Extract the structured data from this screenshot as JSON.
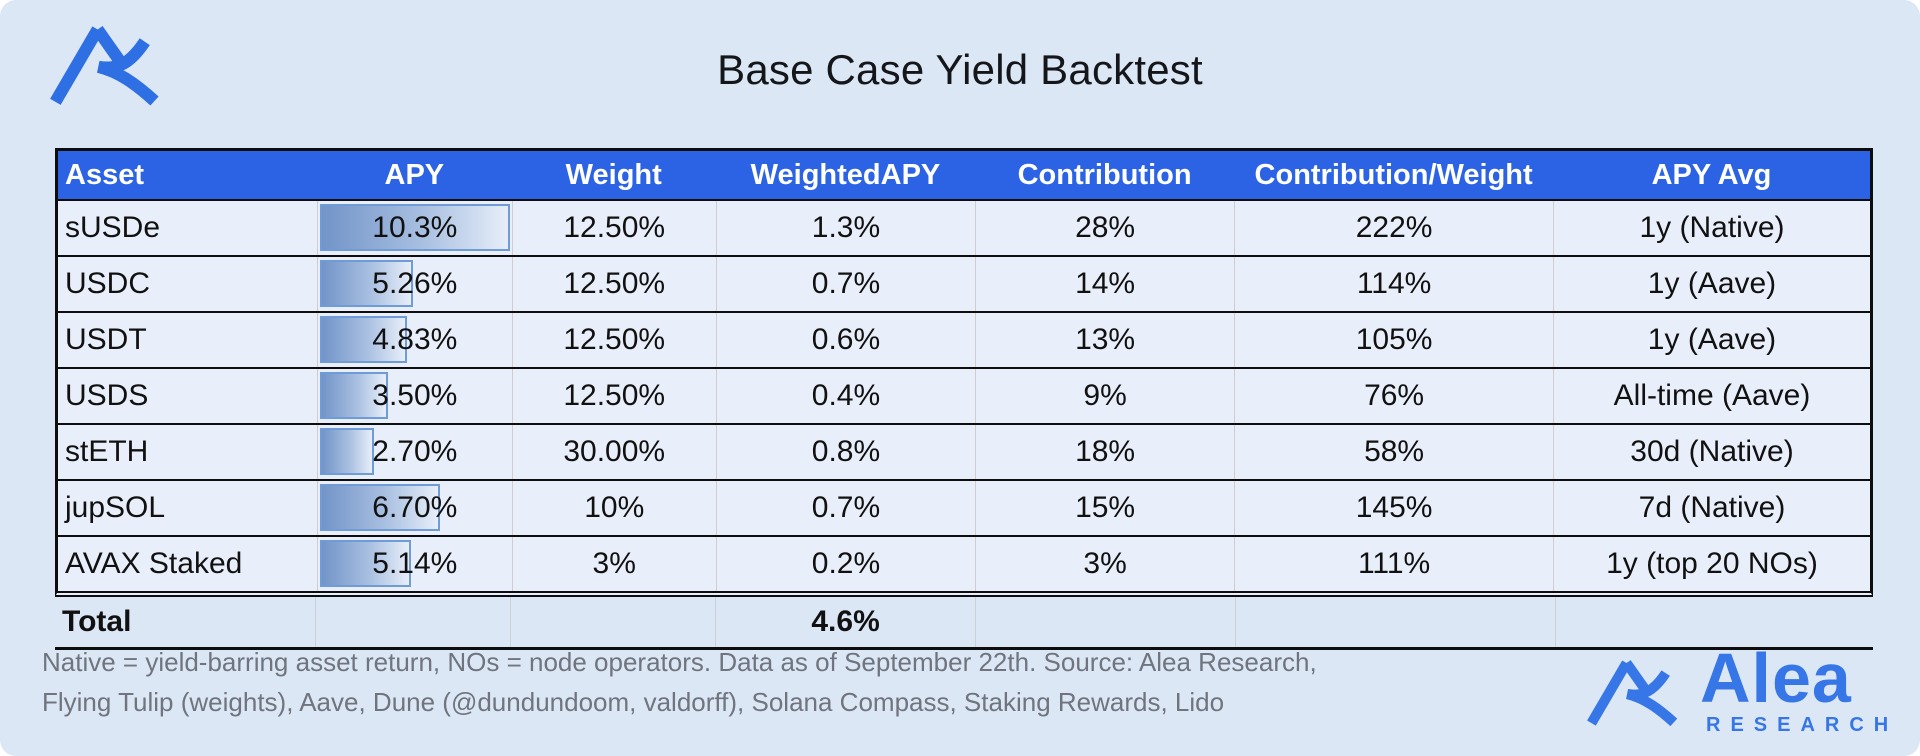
{
  "page": {
    "title": "Base Case Yield Backtest"
  },
  "branding": {
    "wordmark": "Alea",
    "wordmark_sub": "RESEARCH",
    "brand_color": "#3776e6"
  },
  "colors": {
    "page_bg": "#dce7f6",
    "header_bg": "#2b63e4",
    "cell_bg": "#e9effa",
    "bar_fill_start": "#7294c8",
    "bar_border": "#6f9bd6",
    "footnote_gray": "#6f747e"
  },
  "table": {
    "headers": [
      "Asset",
      "APY",
      "Weight",
      "WeightedAPY",
      "Contribution",
      "Contribution/Weight",
      "APY Avg"
    ],
    "rows": [
      {
        "asset": "sUSDe",
        "apy": "10.3%",
        "bar_pct": 100,
        "weight": "12.50%",
        "weighted_apy": "1.3%",
        "contribution": "28%",
        "contribution_weight": "222%",
        "apy_avg": "1y (Native)"
      },
      {
        "asset": "USDC",
        "apy": "5.26%",
        "bar_pct": 50,
        "weight": "12.50%",
        "weighted_apy": "0.7%",
        "contribution": "14%",
        "contribution_weight": "114%",
        "apy_avg": "1y (Aave)"
      },
      {
        "asset": "USDT",
        "apy": "4.83%",
        "bar_pct": 47,
        "weight": "12.50%",
        "weighted_apy": "0.6%",
        "contribution": "13%",
        "contribution_weight": "105%",
        "apy_avg": "1y (Aave)"
      },
      {
        "asset": "USDS",
        "apy": "3.50%",
        "bar_pct": 37,
        "weight": "12.50%",
        "weighted_apy": "0.4%",
        "contribution": "9%",
        "contribution_weight": "76%",
        "apy_avg": "All-time (Aave)"
      },
      {
        "asset": "stETH",
        "apy": "2.70%",
        "bar_pct": 30,
        "weight": "30.00%",
        "weighted_apy": "0.8%",
        "contribution": "18%",
        "contribution_weight": "58%",
        "apy_avg": "30d (Native)"
      },
      {
        "asset": "jupSOL",
        "apy": "6.70%",
        "bar_pct": 64,
        "weight": "10%",
        "weighted_apy": "0.7%",
        "contribution": "15%",
        "contribution_weight": "145%",
        "apy_avg": "7d (Native)"
      },
      {
        "asset": "AVAX Staked",
        "apy": "5.14%",
        "bar_pct": 49,
        "weight": "3%",
        "weighted_apy": "0.2%",
        "contribution": "3%",
        "contribution_weight": "111%",
        "apy_avg": "1y (top 20 NOs)"
      }
    ],
    "total": {
      "label": "Total",
      "weighted_apy": "4.6%"
    }
  },
  "footer": {
    "line1": "Native = yield-barring asset return, NOs = node operators. Data as of September 22th. Source: Alea Research,",
    "line2": "Flying Tulip (weights), Aave, Dune (@dundundoom, valdorff), Solana Compass, Staking Rewards, Lido"
  },
  "chart_data": {
    "type": "table",
    "title": "Base Case Yield Backtest",
    "columns": [
      "Asset",
      "APY",
      "Weight",
      "WeightedAPY",
      "Contribution",
      "Contribution/Weight",
      "APY Avg"
    ],
    "rows": [
      [
        "sUSDe",
        "10.3%",
        "12.50%",
        "1.3%",
        "28%",
        "222%",
        "1y (Native)"
      ],
      [
        "USDC",
        "5.26%",
        "12.50%",
        "0.7%",
        "14%",
        "114%",
        "1y (Aave)"
      ],
      [
        "USDT",
        "4.83%",
        "12.50%",
        "0.6%",
        "13%",
        "105%",
        "1y (Aave)"
      ],
      [
        "USDS",
        "3.50%",
        "12.50%",
        "0.4%",
        "9%",
        "76%",
        "All-time (Aave)"
      ],
      [
        "stETH",
        "2.70%",
        "30.00%",
        "0.8%",
        "18%",
        "58%",
        "30d (Native)"
      ],
      [
        "jupSOL",
        "6.70%",
        "10%",
        "0.7%",
        "15%",
        "145%",
        "7d (Native)"
      ],
      [
        "AVAX Staked",
        "5.14%",
        "3%",
        "0.2%",
        "3%",
        "111%",
        "1y (top 20 NOs)"
      ]
    ],
    "total_row": [
      "Total",
      "",
      "",
      "4.6%",
      "",
      "",
      ""
    ],
    "apy_databar": {
      "max_value": 10.3,
      "values": [
        10.3,
        5.26,
        4.83,
        3.5,
        2.7,
        6.7,
        5.14
      ]
    },
    "layout_hints": {
      "apy_column_has_gradient_databars": true,
      "header_style": "blue-bold-white"
    }
  }
}
